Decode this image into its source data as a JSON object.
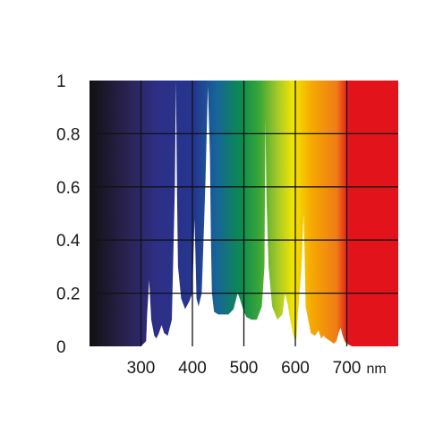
{
  "chart_data": {
    "type": "area",
    "title": "",
    "xlabel": "",
    "ylabel": "",
    "x_unit": "nm",
    "xlim": [
      200,
      800
    ],
    "ylim": [
      0,
      1
    ],
    "x_ticks": [
      "300",
      "400",
      "500",
      "600",
      "700"
    ],
    "y_ticks": [
      "0",
      "0.2",
      "0.4",
      "0.6",
      "0.8",
      "1"
    ],
    "grid": true,
    "background": "visible color spectrum gradient",
    "spectrum_colors": [
      "#111111",
      "#2b2456",
      "#2e2f86",
      "#24368f",
      "#16649a",
      "#0c8b4f",
      "#3aa637",
      "#a8c927",
      "#f3e500",
      "#f6a800",
      "#ef7d17",
      "#e2131b"
    ],
    "fill_color": "#ffffff",
    "series": [
      {
        "x": [
          200,
          290,
          300,
          310,
          312,
          316,
          320,
          326,
          330,
          335,
          340,
          345,
          352,
          360,
          366,
          368,
          370,
          372,
          378,
          386,
          394,
          400,
          404,
          406,
          408,
          412,
          418,
          425,
          430,
          434,
          436,
          438,
          442,
          450,
          460,
          470,
          480,
          488,
          492,
          500,
          505,
          515,
          525,
          535,
          540,
          542,
          544,
          548,
          555,
          565,
          575,
          580,
          585,
          590,
          595,
          598,
          600,
          602,
          605,
          612,
          616,
          618,
          620,
          625,
          630,
          638,
          645,
          650,
          655,
          660,
          668,
          675,
          680,
          684,
          688,
          692,
          696,
          700,
          710,
          720,
          800
        ],
        "y": [
          0,
          0,
          0,
          0.02,
          0.12,
          0.25,
          0.1,
          0.04,
          0.03,
          0.05,
          0.08,
          0.05,
          0.04,
          0.1,
          0.6,
          1.0,
          0.58,
          0.3,
          0.18,
          0.14,
          0.17,
          0.2,
          0.48,
          0.35,
          0.18,
          0.15,
          0.2,
          0.6,
          0.98,
          0.72,
          0.4,
          0.2,
          0.13,
          0.12,
          0.12,
          0.12,
          0.14,
          0.2,
          0.18,
          0.13,
          0.11,
          0.1,
          0.1,
          0.15,
          0.3,
          0.85,
          0.55,
          0.3,
          0.15,
          0.1,
          0.12,
          0.2,
          0.16,
          0.1,
          0.05,
          0.03,
          0.02,
          0.03,
          0.12,
          0.3,
          0.5,
          0.35,
          0.15,
          0.1,
          0.05,
          0.04,
          0.06,
          0.03,
          0.04,
          0.03,
          0.02,
          0.01,
          0.02,
          0.05,
          0.07,
          0.04,
          0.02,
          0.01,
          0,
          0,
          0
        ]
      }
    ]
  }
}
